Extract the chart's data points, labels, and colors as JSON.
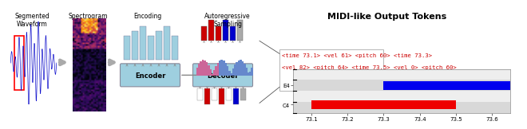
{
  "title": "MIDI-like Output Tokens",
  "token_line1": "<time 73.1> <vel 61> <pitch 60> <time 73.3>",
  "token_line2": "<vel 82> <pitch 64> <time 73.5> <vel 0> <pitch 60>",
  "token_color": "#cc0000",
  "xlim": [
    73.05,
    73.65
  ],
  "ylim": [
    0,
    4
  ],
  "xticks": [
    73.1,
    73.2,
    73.3,
    73.4,
    73.5,
    73.6
  ],
  "ytick_positions": [
    0.75,
    2.5
  ],
  "ytick_labels": [
    "C4",
    "E4"
  ],
  "bar_red_start": 73.1,
  "bar_red_end": 73.5,
  "bar_red_y": 0.35,
  "bar_red_height": 0.8,
  "bar_blue_start": 73.3,
  "bar_blue_end": 73.65,
  "bar_blue_y": 2.1,
  "bar_blue_height": 0.8,
  "bar_red_color": "#ee0000",
  "bar_blue_color": "#0000ee",
  "left_label": "Segmented\nWaveform",
  "encoding_label": "Encoding",
  "spectrogram_label": "Spectrogram",
  "autoregressive_label": "Autoregressive\nSampling",
  "encoder_label": "Encoder",
  "decoder_label": "Decoder",
  "encoder_color": "#9ecfdf",
  "decoder_color": "#9ecfdf",
  "encoding_bar_color": "#9ecfdf",
  "arrow_color": "#bbbbbb"
}
